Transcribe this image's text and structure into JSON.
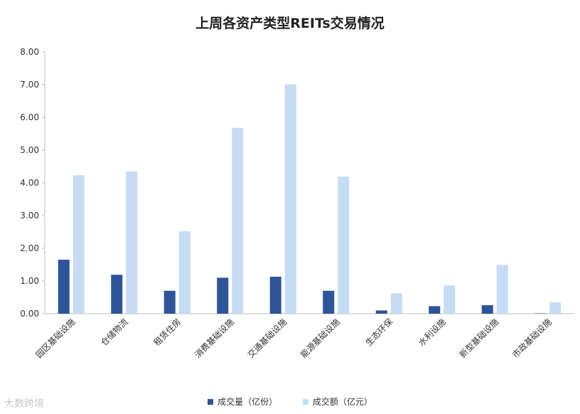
{
  "chart_data": {
    "type": "bar",
    "title": "上周各资产类型REITs交易情况",
    "categories": [
      "园区基础设施",
      "仓储物流",
      "租赁住房",
      "消费基础设施",
      "交通基础设施",
      "能源基础设施",
      "生态环保",
      "水利设施",
      "新型基础设施",
      "市政基础设施"
    ],
    "series": [
      {
        "name": "成交量（亿份）",
        "color": "#2e5597",
        "values": [
          1.65,
          1.19,
          0.7,
          1.1,
          1.13,
          0.7,
          0.1,
          0.23,
          0.26,
          0.01
        ]
      },
      {
        "name": "成交额（亿元）",
        "color": "#c6dcf5",
        "values": [
          4.23,
          4.35,
          2.52,
          5.68,
          7.01,
          4.19,
          0.62,
          0.86,
          1.49,
          0.35
        ]
      }
    ],
    "ylim": [
      0,
      8
    ],
    "yticks": [
      "0.00",
      "1.00",
      "2.00",
      "3.00",
      "4.00",
      "5.00",
      "6.00",
      "7.00",
      "8.00"
    ],
    "legend_position": "bottom",
    "grid": false
  },
  "watermark": "大数跨境"
}
